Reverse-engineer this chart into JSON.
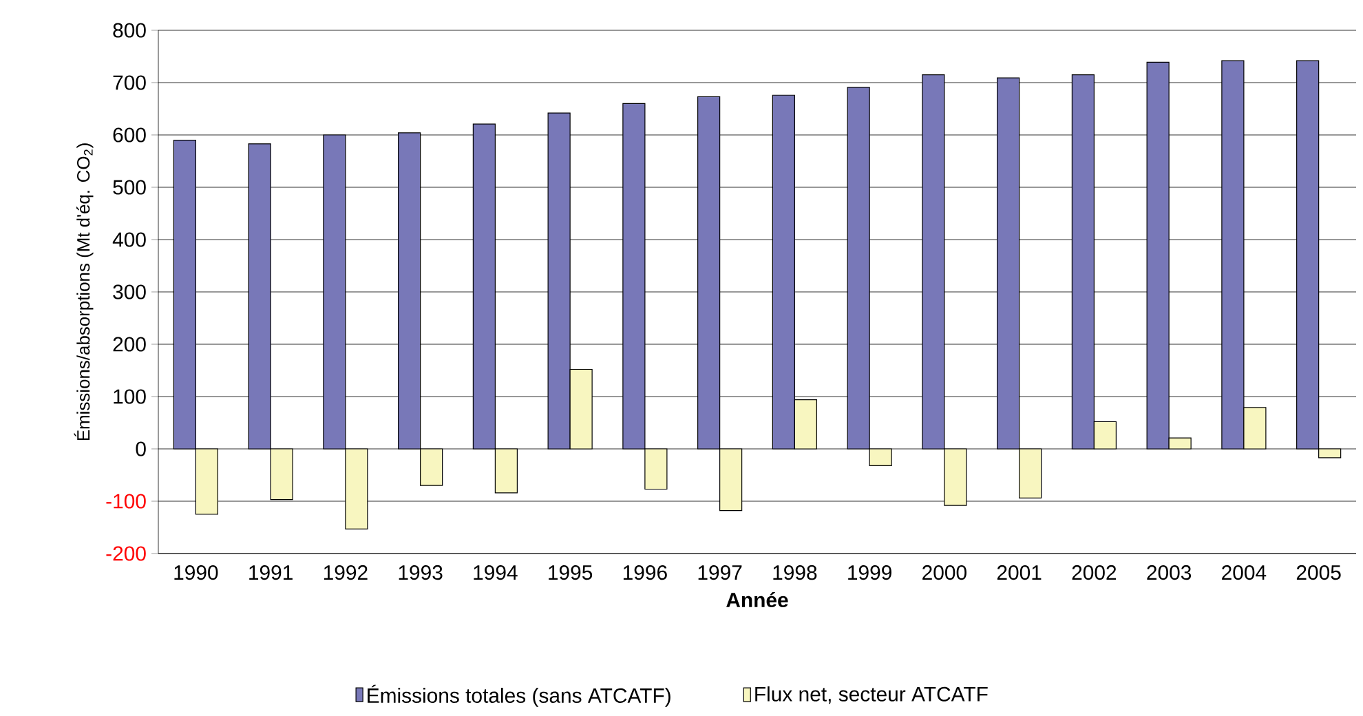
{
  "chart_data": {
    "type": "bar",
    "xlabel": "Année",
    "ylabel": "Émissions/absorptions (Mt d'éq. CO$_{2}$)",
    "categories": [
      "1990",
      "1991",
      "1992",
      "1993",
      "1994",
      "1995",
      "1996",
      "1997",
      "1998",
      "1999",
      "2000",
      "2001",
      "2002",
      "2003",
      "2004",
      "2005"
    ],
    "series": [
      {
        "name": "Émissions totales (sans ATCATF)",
        "color": "#7878b8",
        "values": [
          590,
          583,
          600,
          604,
          621,
          642,
          660,
          673,
          676,
          691,
          715,
          709,
          715,
          739,
          742,
          742
        ]
      },
      {
        "name": "Flux net, secteur ATCATF",
        "color": "#f8f6c0",
        "values": [
          -125,
          -97,
          -153,
          -70,
          -84,
          152,
          -77,
          -118,
          94,
          -32,
          -108,
          -94,
          52,
          21,
          79,
          -17
        ]
      }
    ],
    "ylim": [
      -200,
      800
    ],
    "yticks": [
      -200,
      -100,
      0,
      100,
      200,
      300,
      400,
      500,
      600,
      700,
      800
    ],
    "grid": "y",
    "legend": "bottom"
  }
}
